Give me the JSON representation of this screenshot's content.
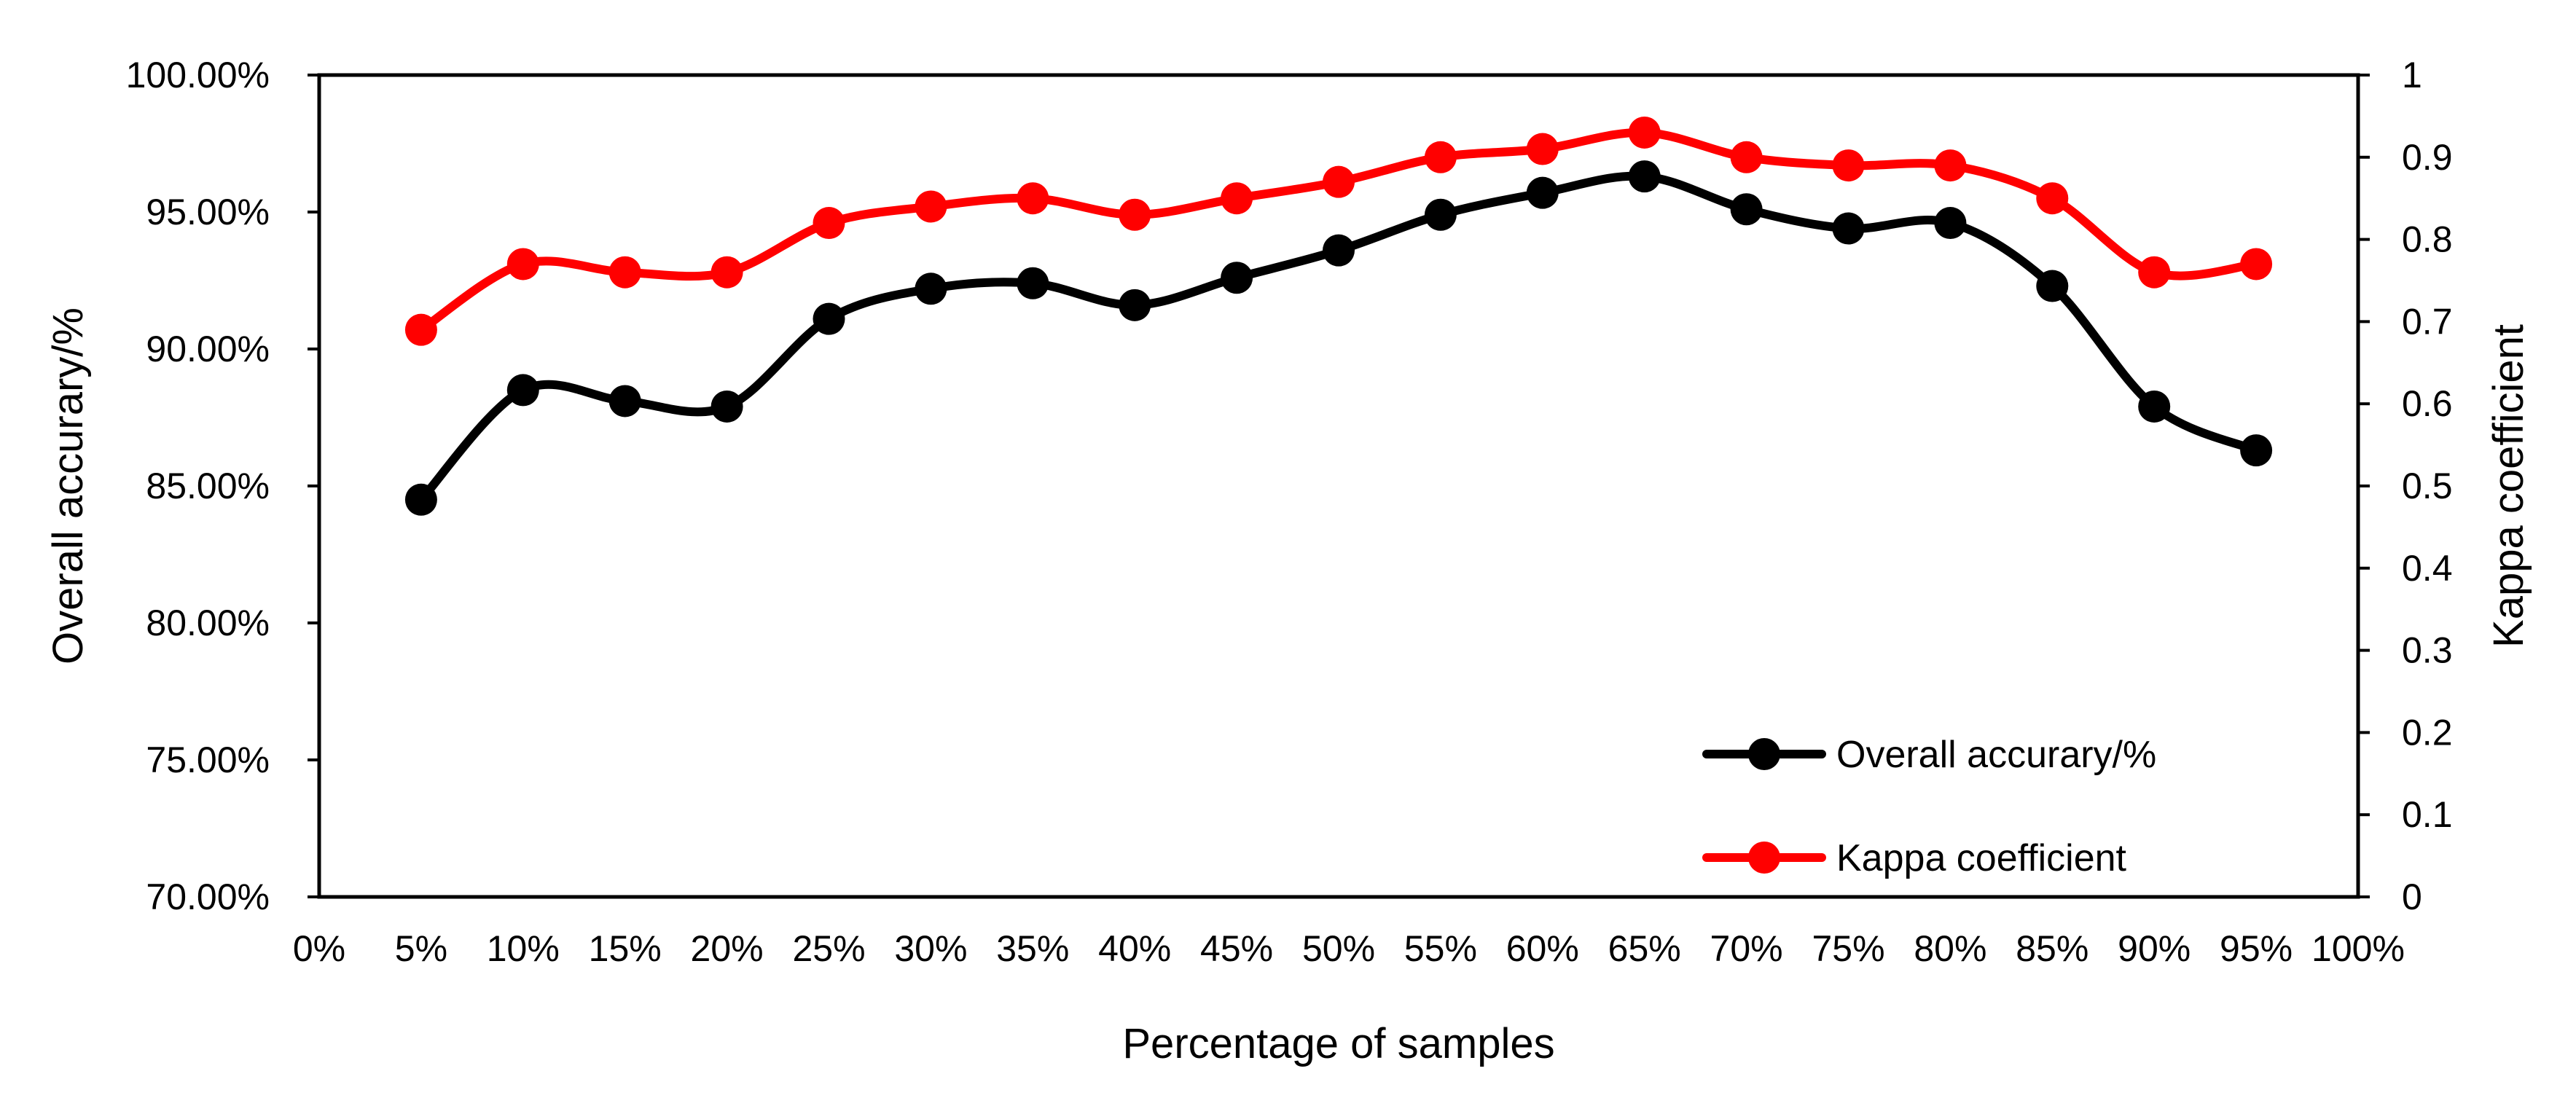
{
  "chart_data": {
    "type": "line",
    "title": "",
    "xlabel": "Percentage of samples",
    "ylabel_left": "Overall accurary/%",
    "ylabel_right": "Kappa coefficient",
    "x_tick_labels": [
      "0%",
      "5%",
      "10%",
      "15%",
      "20%",
      "25%",
      "30%",
      "35%",
      "40%",
      "45%",
      "50%",
      "55%",
      "60%",
      "65%",
      "70%",
      "75%",
      "80%",
      "85%",
      "90%",
      "95%",
      "100%"
    ],
    "x_range": [
      0,
      100
    ],
    "x_unit_suffix": "%",
    "y_left_range": [
      70,
      100
    ],
    "y_left_ticks": [
      "70.00%",
      "75.00%",
      "80.00%",
      "85.00%",
      "90.00%",
      "95.00%",
      "100.00%"
    ],
    "y_right_range": [
      0,
      1
    ],
    "y_right_ticks": [
      "0",
      "0.1",
      "0.2",
      "0.3",
      "0.4",
      "0.5",
      "0.6",
      "0.7",
      "0.8",
      "0.9",
      "1"
    ],
    "x": [
      5,
      10,
      15,
      20,
      25,
      30,
      35,
      40,
      45,
      50,
      55,
      60,
      65,
      70,
      75,
      80,
      85,
      90,
      95
    ],
    "series": [
      {
        "name": "Overall accurary/%",
        "axis": "left",
        "color": "#000000",
        "values": [
          84.5,
          88.5,
          88.1,
          87.9,
          91.1,
          92.2,
          92.4,
          91.6,
          92.6,
          93.6,
          94.9,
          95.7,
          96.3,
          95.1,
          94.4,
          94.6,
          92.3,
          87.9,
          86.3
        ]
      },
      {
        "name": "Kappa coefficient",
        "axis": "right",
        "color": "#ff0000",
        "values": [
          0.69,
          0.77,
          0.76,
          0.76,
          0.82,
          0.84,
          0.85,
          0.83,
          0.85,
          0.87,
          0.9,
          0.91,
          0.93,
          0.9,
          0.89,
          0.89,
          0.85,
          0.76,
          0.77
        ]
      }
    ],
    "legend": {
      "position": "bottom-right",
      "entries": [
        "Overall accurary/%",
        "Kappa coefficient"
      ]
    },
    "grid": false
  }
}
